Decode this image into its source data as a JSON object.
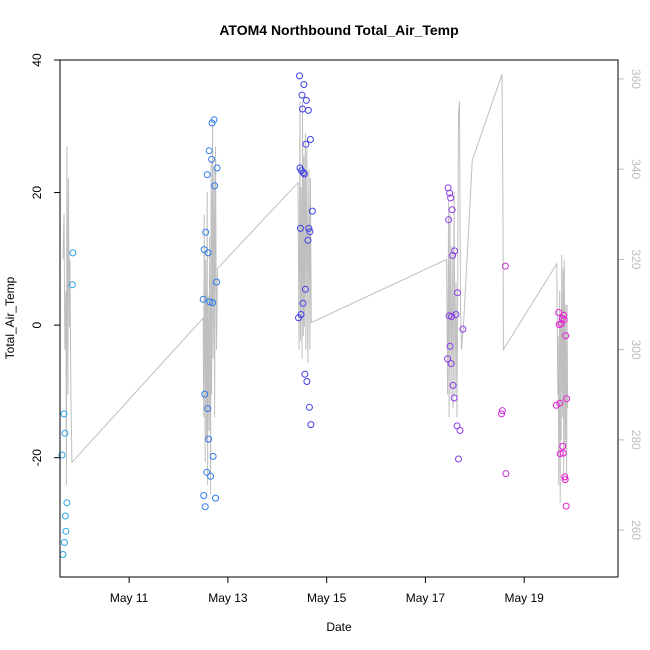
{
  "chart_data": {
    "type": "scatter",
    "title": "ATOM4 Northbound Total_Air_Temp",
    "xlabel": "Date",
    "ylabel": "Total_Air_Temp",
    "xlim": [
      9.6,
      20.9
    ],
    "ylim": [
      -38,
      40
    ],
    "x_ticks": [
      {
        "value": 11,
        "label": "May 11"
      },
      {
        "value": 13,
        "label": "May 13"
      },
      {
        "value": 15,
        "label": "May 15"
      },
      {
        "value": 17,
        "label": "May 17"
      },
      {
        "value": 19,
        "label": "May 19"
      }
    ],
    "y_ticks": [
      -20,
      0,
      20,
      40
    ],
    "y2_ticks": [
      260,
      280,
      300,
      320,
      340,
      360
    ],
    "y2lim": [
      249.6,
      364.2
    ],
    "series": [
      {
        "name": "Total_Air_Temp",
        "type": "scatter",
        "points": [
          {
            "x": 9.64,
            "y": -19.6,
            "c": "#2ba6e6"
          },
          {
            "x": 9.66,
            "y": -34.6,
            "c": "#2ba6e6"
          },
          {
            "x": 9.68,
            "y": -13.4,
            "c": "#2ba6e6"
          },
          {
            "x": 9.69,
            "y": -32.8,
            "c": "#2ba6e6"
          },
          {
            "x": 9.7,
            "y": -16.3,
            "c": "#2ba6e6"
          },
          {
            "x": 9.71,
            "y": -28.8,
            "c": "#2ba6e6"
          },
          {
            "x": 9.72,
            "y": -31.1,
            "c": "#2ba6e6"
          },
          {
            "x": 9.74,
            "y": -26.8,
            "c": "#2ba6e6"
          },
          {
            "x": 9.85,
            "y": 6.1,
            "c": "#2ba6e6"
          },
          {
            "x": 9.86,
            "y": 10.9,
            "c": "#2ba6e6"
          },
          {
            "x": 12.5,
            "y": 3.9,
            "c": "#2f7bea"
          },
          {
            "x": 12.51,
            "y": -25.7,
            "c": "#2f7bea"
          },
          {
            "x": 12.52,
            "y": 11.4,
            "c": "#2f7bea"
          },
          {
            "x": 12.53,
            "y": -10.4,
            "c": "#2f7bea"
          },
          {
            "x": 12.54,
            "y": -27.4,
            "c": "#2f7bea"
          },
          {
            "x": 12.55,
            "y": 14.0,
            "c": "#2f7bea"
          },
          {
            "x": 12.57,
            "y": -22.2,
            "c": "#2f7bea"
          },
          {
            "x": 12.58,
            "y": 22.7,
            "c": "#2f7bea"
          },
          {
            "x": 12.59,
            "y": -12.6,
            "c": "#2f7bea"
          },
          {
            "x": 12.6,
            "y": 10.9,
            "c": "#2f7bea"
          },
          {
            "x": 12.61,
            "y": -17.2,
            "c": "#2f7bea"
          },
          {
            "x": 12.62,
            "y": 26.3,
            "c": "#2f7bea"
          },
          {
            "x": 12.63,
            "y": 3.5,
            "c": "#2f7bea"
          },
          {
            "x": 12.65,
            "y": -22.8,
            "c": "#2f7bea"
          },
          {
            "x": 12.67,
            "y": 25.0,
            "c": "#2f7bea"
          },
          {
            "x": 12.68,
            "y": 30.5,
            "c": "#2f7bea"
          },
          {
            "x": 12.69,
            "y": 3.4,
            "c": "#2f7bea"
          },
          {
            "x": 12.7,
            "y": -19.8,
            "c": "#2f7bea"
          },
          {
            "x": 12.72,
            "y": 31.0,
            "c": "#2f7bea"
          },
          {
            "x": 12.73,
            "y": 21.0,
            "c": "#2f7bea"
          },
          {
            "x": 12.75,
            "y": -26.1,
            "c": "#2f7bea"
          },
          {
            "x": 12.77,
            "y": 6.5,
            "c": "#2f7bea"
          },
          {
            "x": 12.78,
            "y": 23.7,
            "c": "#2f7bea"
          },
          {
            "x": 14.43,
            "y": 1.1,
            "c": "#3f3fe6"
          },
          {
            "x": 14.45,
            "y": 37.6,
            "c": "#3f3fe6"
          },
          {
            "x": 14.46,
            "y": 23.7,
            "c": "#3f3fe6"
          },
          {
            "x": 14.47,
            "y": 14.6,
            "c": "#3f3fe6"
          },
          {
            "x": 14.48,
            "y": 1.6,
            "c": "#3f3fe6"
          },
          {
            "x": 14.49,
            "y": 23.3,
            "c": "#3f3fe6"
          },
          {
            "x": 14.5,
            "y": 34.7,
            "c": "#3f3fe6"
          },
          {
            "x": 14.51,
            "y": 32.6,
            "c": "#3f3fe6"
          },
          {
            "x": 14.52,
            "y": 3.3,
            "c": "#3f3fe6"
          },
          {
            "x": 14.53,
            "y": 23.0,
            "c": "#3f3fe6"
          },
          {
            "x": 14.54,
            "y": 36.3,
            "c": "#3f3fe6"
          },
          {
            "x": 14.55,
            "y": 22.8,
            "c": "#3f3fe6"
          },
          {
            "x": 14.56,
            "y": -7.4,
            "c": "#3f3fe6"
          },
          {
            "x": 14.57,
            "y": 5.4,
            "c": "#3f3fe6"
          },
          {
            "x": 14.58,
            "y": 27.3,
            "c": "#3f3fe6"
          },
          {
            "x": 14.59,
            "y": 33.9,
            "c": "#3f3fe6"
          },
          {
            "x": 14.6,
            "y": -8.5,
            "c": "#3f3fe6"
          },
          {
            "x": 14.62,
            "y": 12.8,
            "c": "#3f3fe6"
          },
          {
            "x": 14.63,
            "y": 32.4,
            "c": "#3f3fe6"
          },
          {
            "x": 14.64,
            "y": 14.6,
            "c": "#3f3fe6"
          },
          {
            "x": 14.65,
            "y": -12.4,
            "c": "#3f3fe6"
          },
          {
            "x": 14.66,
            "y": 14.1,
            "c": "#3f3fe6"
          },
          {
            "x": 14.67,
            "y": 28.0,
            "c": "#3f3fe6"
          },
          {
            "x": 14.68,
            "y": -15.0,
            "c": "#3f3fe6"
          },
          {
            "x": 14.71,
            "y": 17.2,
            "c": "#3f3fe6"
          },
          {
            "x": 17.45,
            "y": -5.1,
            "c": "#8a3ee8"
          },
          {
            "x": 17.46,
            "y": 20.7,
            "c": "#8a3ee8"
          },
          {
            "x": 17.47,
            "y": 15.9,
            "c": "#8a3ee8"
          },
          {
            "x": 17.48,
            "y": 1.4,
            "c": "#8a3ee8"
          },
          {
            "x": 17.49,
            "y": 19.9,
            "c": "#8a3ee8"
          },
          {
            "x": 17.5,
            "y": -3.2,
            "c": "#8a3ee8"
          },
          {
            "x": 17.51,
            "y": 19.2,
            "c": "#8a3ee8"
          },
          {
            "x": 17.52,
            "y": -5.8,
            "c": "#8a3ee8"
          },
          {
            "x": 17.53,
            "y": 1.3,
            "c": "#8a3ee8"
          },
          {
            "x": 17.54,
            "y": 17.4,
            "c": "#8a3ee8"
          },
          {
            "x": 17.55,
            "y": 10.5,
            "c": "#8a3ee8"
          },
          {
            "x": 17.56,
            "y": -9.1,
            "c": "#8a3ee8"
          },
          {
            "x": 17.58,
            "y": -11.0,
            "c": "#8a3ee8"
          },
          {
            "x": 17.59,
            "y": 11.2,
            "c": "#8a3ee8"
          },
          {
            "x": 17.62,
            "y": 1.6,
            "c": "#8a3ee8"
          },
          {
            "x": 17.64,
            "y": -15.2,
            "c": "#8a3ee8"
          },
          {
            "x": 17.65,
            "y": 4.9,
            "c": "#8a3ee8"
          },
          {
            "x": 17.67,
            "y": -20.2,
            "c": "#8a3ee8"
          },
          {
            "x": 17.7,
            "y": -15.9,
            "c": "#8a3ee8"
          },
          {
            "x": 17.76,
            "y": -0.6,
            "c": "#8a3ee8"
          },
          {
            "x": 18.54,
            "y": -13.4,
            "c": "#cc33dd"
          },
          {
            "x": 18.56,
            "y": -12.9,
            "c": "#cc33dd"
          },
          {
            "x": 18.62,
            "y": 8.9,
            "c": "#cc33dd"
          },
          {
            "x": 18.63,
            "y": -22.4,
            "c": "#cc33dd"
          },
          {
            "x": 19.65,
            "y": -12.1,
            "c": "#e51fd2"
          },
          {
            "x": 19.7,
            "y": 1.9,
            "c": "#e51fd2"
          },
          {
            "x": 19.71,
            "y": 0.1,
            "c": "#e51fd2"
          },
          {
            "x": 19.72,
            "y": -11.8,
            "c": "#e51fd2"
          },
          {
            "x": 19.73,
            "y": -19.4,
            "c": "#e51fd2"
          },
          {
            "x": 19.75,
            "y": 0.2,
            "c": "#e51fd2"
          },
          {
            "x": 19.77,
            "y": 1.0,
            "c": "#e51fd2"
          },
          {
            "x": 19.78,
            "y": -18.3,
            "c": "#e51fd2"
          },
          {
            "x": 19.79,
            "y": -19.3,
            "c": "#e51fd2"
          },
          {
            "x": 19.8,
            "y": 1.5,
            "c": "#e51fd2"
          },
          {
            "x": 19.81,
            "y": 0.8,
            "c": "#e51fd2"
          },
          {
            "x": 19.82,
            "y": -22.9,
            "c": "#e51fd2"
          },
          {
            "x": 19.83,
            "y": -23.3,
            "c": "#e51fd2"
          },
          {
            "x": 19.84,
            "y": -1.6,
            "c": "#e51fd2"
          },
          {
            "x": 19.85,
            "y": -27.3,
            "c": "#e51fd2"
          },
          {
            "x": 19.86,
            "y": -11.1,
            "c": "#e51fd2"
          }
        ]
      },
      {
        "name": "secondary-axis-line",
        "type": "line",
        "axis": "right",
        "color": "#bfbfbf",
        "points": [
          [
            9.66,
            320
          ],
          [
            9.68,
            330
          ],
          [
            9.7,
            300
          ],
          [
            9.72,
            313
          ],
          [
            9.73,
            270
          ],
          [
            9.74,
            345
          ],
          [
            9.76,
            290
          ],
          [
            9.77,
            338
          ],
          [
            9.79,
            305
          ],
          [
            9.8,
            320
          ],
          [
            9.82,
            290
          ],
          [
            9.84,
            275
          ],
          [
            12.5,
            307
          ],
          [
            12.51,
            285
          ],
          [
            12.52,
            330
          ],
          [
            12.54,
            275
          ],
          [
            12.55,
            320
          ],
          [
            12.57,
            280
          ],
          [
            12.58,
            335
          ],
          [
            12.59,
            270
          ],
          [
            12.6,
            312
          ],
          [
            12.62,
            282
          ],
          [
            12.63,
            325
          ],
          [
            12.65,
            268
          ],
          [
            12.66,
            342
          ],
          [
            12.67,
            290
          ],
          [
            12.69,
            350
          ],
          [
            12.7,
            298
          ],
          [
            12.72,
            340
          ],
          [
            12.73,
            285
          ],
          [
            12.75,
            345
          ],
          [
            12.77,
            300
          ],
          [
            12.79,
            318
          ],
          [
            14.42,
            337
          ],
          [
            14.44,
            300
          ],
          [
            14.46,
            355
          ],
          [
            14.47,
            302
          ],
          [
            14.48,
            336
          ],
          [
            14.5,
            298
          ],
          [
            14.51,
            355
          ],
          [
            14.53,
            303
          ],
          [
            14.54,
            343
          ],
          [
            14.55,
            305
          ],
          [
            14.57,
            348
          ],
          [
            14.58,
            300
          ],
          [
            14.6,
            345
          ],
          [
            14.62,
            297
          ],
          [
            14.64,
            340
          ],
          [
            14.66,
            300
          ],
          [
            14.67,
            338
          ],
          [
            14.69,
            306
          ],
          [
            17.43,
            320
          ],
          [
            17.45,
            290
          ],
          [
            17.47,
            333
          ],
          [
            17.48,
            285
          ],
          [
            17.5,
            330
          ],
          [
            17.52,
            290
          ],
          [
            17.54,
            323
          ],
          [
            17.56,
            287
          ],
          [
            17.58,
            335
          ],
          [
            17.6,
            290
          ],
          [
            17.62,
            315
          ],
          [
            17.64,
            285
          ],
          [
            17.67,
            352
          ],
          [
            17.69,
            355
          ],
          [
            17.71,
            310
          ],
          [
            17.73,
            300
          ],
          [
            17.77,
            305
          ],
          [
            17.95,
            342
          ],
          [
            18.55,
            361
          ],
          [
            18.57,
            334
          ],
          [
            18.58,
            300
          ],
          [
            19.66,
            319
          ],
          [
            19.68,
            290
          ],
          [
            19.69,
            303
          ],
          [
            19.7,
            270
          ],
          [
            19.72,
            313
          ],
          [
            19.73,
            266
          ],
          [
            19.74,
            308
          ],
          [
            19.75,
            280
          ],
          [
            19.76,
            321
          ],
          [
            19.78,
            285
          ],
          [
            19.79,
            318
          ],
          [
            19.8,
            271
          ],
          [
            19.81,
            320
          ],
          [
            19.83,
            278
          ],
          [
            19.84,
            310
          ],
          [
            19.86,
            271
          ],
          [
            19.87,
            310
          ],
          [
            19.88,
            287
          ]
        ]
      }
    ]
  }
}
